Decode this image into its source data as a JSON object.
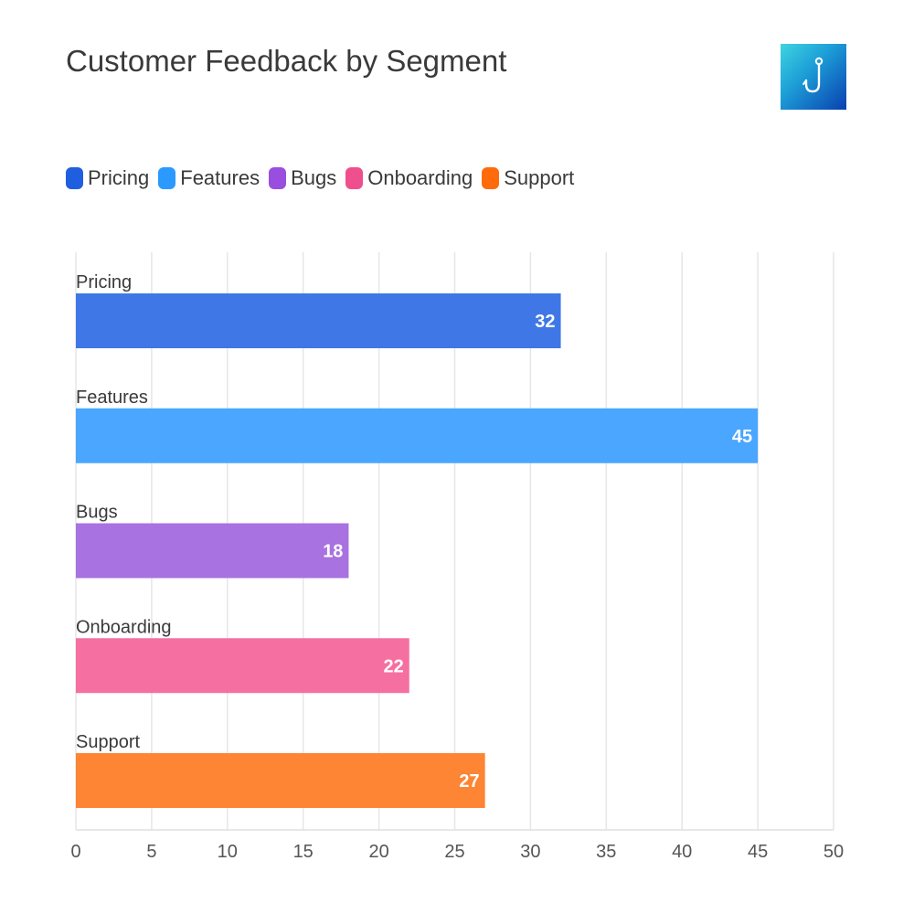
{
  "title": "Customer Feedback by Segment",
  "logo": {
    "icon": "fishhook-icon"
  },
  "legend": [
    {
      "label": "Pricing",
      "color": "#1f5fdf"
    },
    {
      "label": "Features",
      "color": "#2b99ff"
    },
    {
      "label": "Bugs",
      "color": "#9a4ee0"
    },
    {
      "label": "Onboarding",
      "color": "#f04f8e"
    },
    {
      "label": "Support",
      "color": "#ff6b0a"
    }
  ],
  "chart_data": {
    "type": "bar",
    "orientation": "horizontal",
    "title": "Customer Feedback by Segment",
    "categories": [
      "Pricing",
      "Features",
      "Bugs",
      "Onboarding",
      "Support"
    ],
    "values": [
      32,
      45,
      18,
      22,
      27
    ],
    "colors": [
      "#3f78e6",
      "#4aa6ff",
      "#a872e0",
      "#f56fa1",
      "#fd8533"
    ],
    "xlim": [
      0,
      50
    ],
    "xticks": [
      0,
      5,
      10,
      15,
      20,
      25,
      30,
      35,
      40,
      45,
      50
    ],
    "grid": true,
    "legend_position": "top-left",
    "xlabel": "",
    "ylabel": ""
  }
}
